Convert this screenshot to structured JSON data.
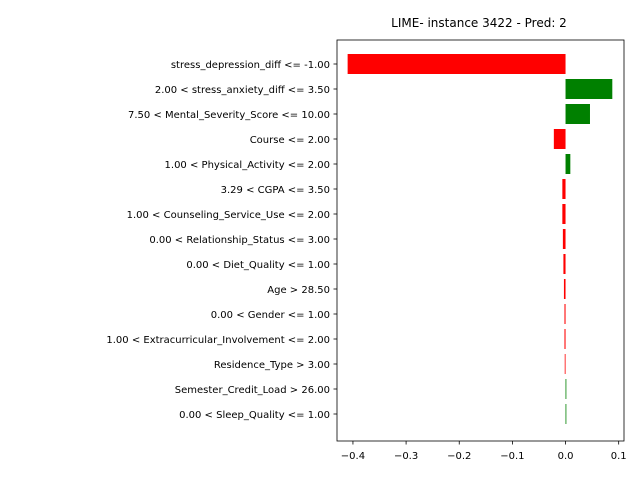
{
  "chart_data": {
    "type": "bar",
    "orientation": "horizontal",
    "title": "LIME- instance 3422 - Pred: 2",
    "xlabel": "",
    "ylabel": "",
    "xlim": [
      -0.43,
      0.11
    ],
    "xticks": [
      -0.4,
      -0.3,
      -0.2,
      -0.1,
      0.0,
      0.1
    ],
    "xtick_labels": [
      "−0.4",
      "−0.3",
      "−0.2",
      "−0.1",
      "0.0",
      "0.1"
    ],
    "grid": false,
    "categories": [
      "stress_depression_diff <= -1.00",
      "2.00 < stress_anxiety_diff <= 3.50",
      "7.50 < Mental_Severity_Score <= 10.00",
      "Course <= 2.00",
      "1.00 < Physical_Activity <= 2.00",
      "3.29 < CGPA <= 3.50",
      "1.00 < Counseling_Service_Use <= 2.00",
      "0.00 < Relationship_Status <= 3.00",
      "0.00 < Diet_Quality <= 1.00",
      "Age > 28.50",
      "0.00 < Gender <= 1.00",
      "1.00 < Extracurricular_Involvement <= 2.00",
      "Residence_Type > 3.00",
      "Semester_Credit_Load > 26.00",
      "0.00 < Sleep_Quality <= 1.00"
    ],
    "values": [
      -0.41,
      0.088,
      0.046,
      -0.022,
      0.009,
      -0.006,
      -0.006,
      -0.005,
      -0.004,
      -0.003,
      -0.002,
      -0.002,
      -0.0015,
      0.001,
      0.001
    ],
    "colors": {
      "positive": "#008000",
      "negative": "#ff0000"
    }
  }
}
